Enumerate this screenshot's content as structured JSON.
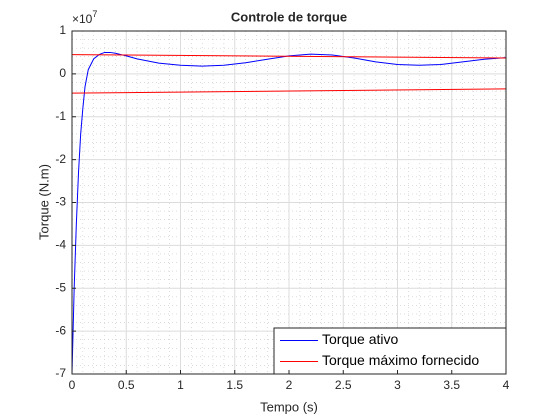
{
  "chart_data": {
    "type": "line",
    "title": "Controle de torque",
    "xlabel": "Tempo (s)",
    "ylabel": "Torque (N.m)",
    "y_multiplier": "×10",
    "y_multiplier_exponent": "7",
    "xlim": [
      0,
      4
    ],
    "xticks": [
      0,
      0.5,
      1,
      1.5,
      2,
      2.5,
      3,
      3.5,
      4
    ],
    "ylim": [
      -7,
      1
    ],
    "yticks": [
      -7,
      -6,
      -5,
      -4,
      -3,
      -2,
      -1,
      0,
      1
    ],
    "grid": true,
    "minor_grid": true,
    "legend": "lower right",
    "series": [
      {
        "name": "Torque ativo",
        "color": "#0000ff",
        "x": [
          0,
          0.02,
          0.04,
          0.06,
          0.08,
          0.1,
          0.12,
          0.15,
          0.2,
          0.25,
          0.3,
          0.35,
          0.4,
          0.5,
          0.6,
          0.8,
          1.0,
          1.2,
          1.4,
          1.6,
          1.8,
          2.0,
          2.2,
          2.4,
          2.6,
          2.8,
          3.0,
          3.2,
          3.4,
          3.6,
          3.8,
          4.0
        ],
        "values": [
          -7,
          -5,
          -3.5,
          -2.3,
          -1.4,
          -0.8,
          -0.3,
          0.1,
          0.35,
          0.45,
          0.5,
          0.5,
          0.48,
          0.42,
          0.35,
          0.25,
          0.2,
          0.18,
          0.2,
          0.26,
          0.34,
          0.42,
          0.46,
          0.44,
          0.37,
          0.28,
          0.22,
          0.2,
          0.22,
          0.28,
          0.34,
          0.38
        ]
      },
      {
        "name": "Torque máximo fornecido",
        "color": "#ff0000",
        "x": [
          0,
          4
        ],
        "values": [
          0.45,
          0.37
        ]
      },
      {
        "color": "#ff0000",
        "x": [
          0,
          4
        ],
        "values": [
          -0.45,
          -0.35
        ]
      }
    ]
  }
}
